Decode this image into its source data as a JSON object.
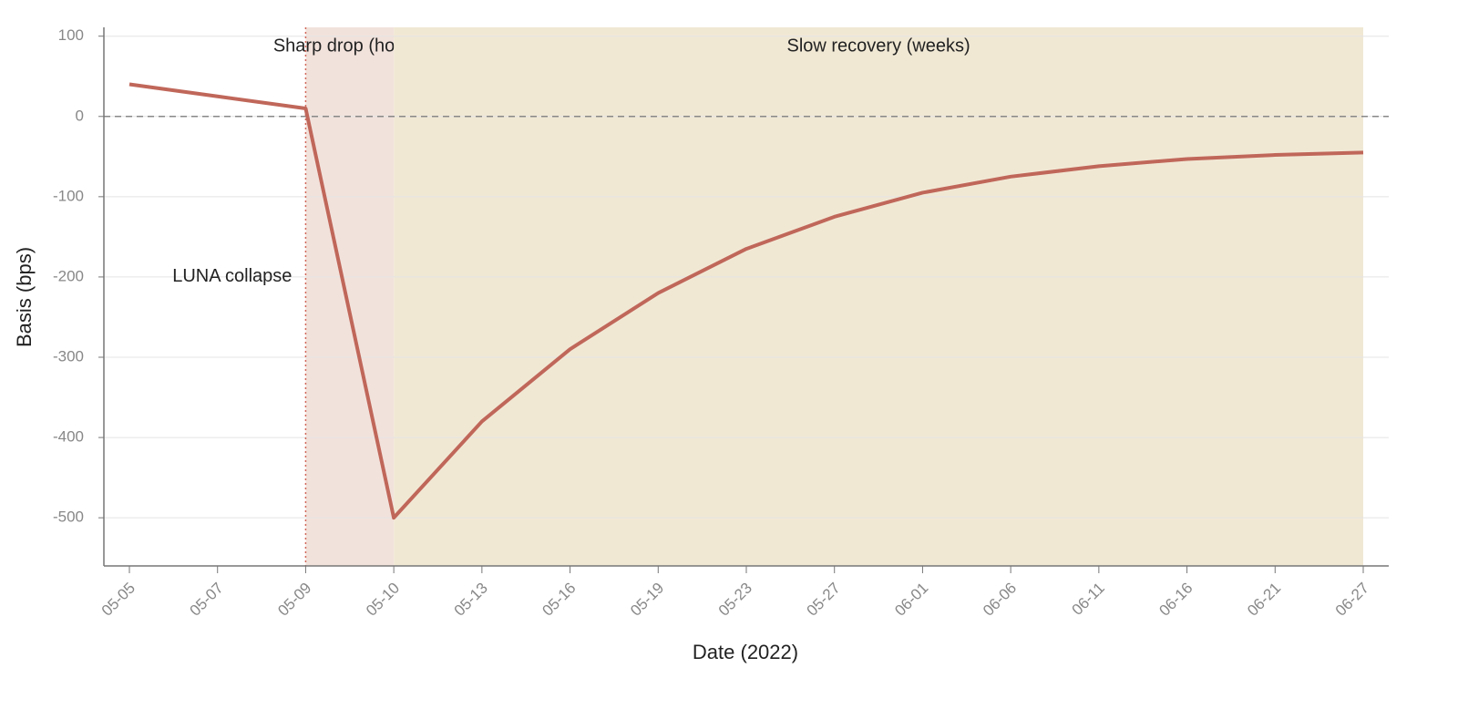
{
  "chart_data": {
    "type": "line",
    "x_label": "Date (2022)",
    "y_label": "Basis (bps)",
    "categories": [
      "05-05",
      "05-07",
      "05-09",
      "05-10",
      "05-13",
      "05-16",
      "05-19",
      "05-23",
      "05-27",
      "06-01",
      "06-06",
      "06-11",
      "06-16",
      "06-21",
      "06-27"
    ],
    "series": [
      {
        "name": "Basis",
        "color": "#c0675a",
        "values": [
          40,
          25,
          10,
          -500,
          -380,
          -290,
          -220,
          -165,
          -125,
          -95,
          -75,
          -62,
          -53,
          -48,
          -45
        ]
      }
    ],
    "ylim": [
      -560,
      111
    ],
    "yticks": [
      -500,
      -400,
      -300,
      -200,
      -100,
      0,
      100
    ],
    "grid": true,
    "reference_line": 0,
    "spans": [
      {
        "label": "Sharp drop (hours)",
        "start": "05-09",
        "end": "05-10",
        "color": "#f2e2dc"
      },
      {
        "label": "Slow recovery (weeks)",
        "start": "05-10",
        "end": "06-27",
        "color": "#f1e8d4"
      }
    ],
    "event": {
      "label": "LUNA collapse",
      "at": "05-09",
      "color": "#d0685a"
    }
  }
}
